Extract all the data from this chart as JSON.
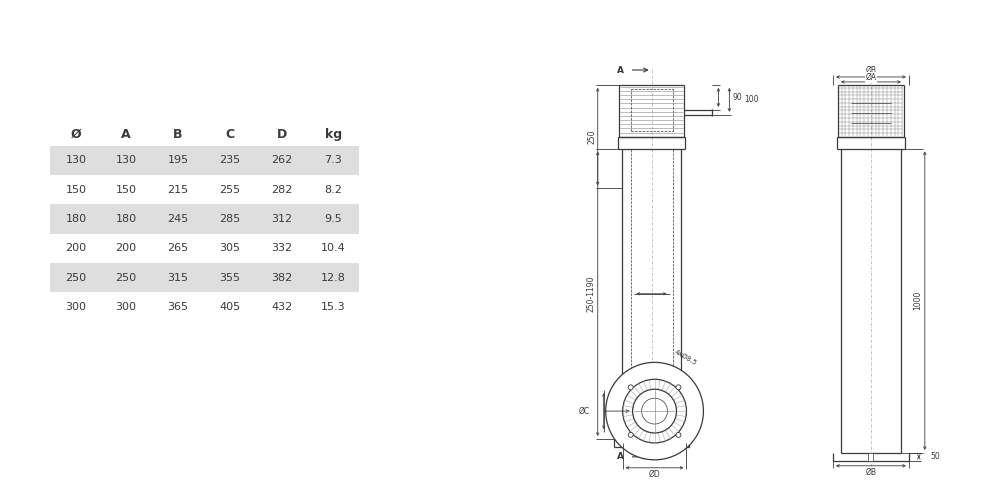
{
  "bg_color": "#ffffff",
  "line_color": "#3a3a3a",
  "dim_color": "#3a3a3a",
  "table_headers": [
    "Ø",
    "A",
    "B",
    "C",
    "D",
    "kg"
  ],
  "table_rows": [
    [
      "130",
      "130",
      "195",
      "235",
      "262",
      "7.3"
    ],
    [
      "150",
      "150",
      "215",
      "255",
      "282",
      "8.2"
    ],
    [
      "180",
      "180",
      "245",
      "285",
      "312",
      "9.5"
    ],
    [
      "200",
      "200",
      "265",
      "305",
      "332",
      "10.4"
    ],
    [
      "250",
      "250",
      "315",
      "355",
      "382",
      "12.8"
    ],
    [
      "300",
      "300",
      "365",
      "405",
      "432",
      "15.3"
    ]
  ],
  "shaded_rows": [
    0,
    2,
    4
  ],
  "shade_color": "#dedede",
  "text_color": "#3a3a3a",
  "lw_main": 0.9,
  "lw_thin": 0.5,
  "lw_dim": 0.6,
  "fontsize_dim": 5.5,
  "fontsize_table": 8.0,
  "fontsize_header": 9.0
}
